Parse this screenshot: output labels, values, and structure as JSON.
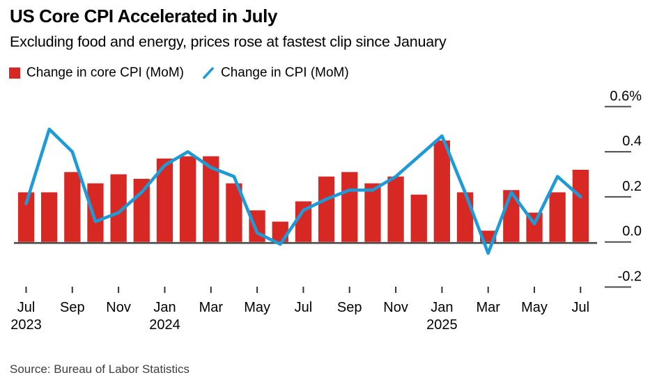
{
  "header": {
    "title": "US Core CPI Accelerated in July",
    "subtitle": "Excluding food and energy, prices rose at fastest clip since January"
  },
  "legend": {
    "core": {
      "label": "Change in core CPI (MoM)"
    },
    "cpi": {
      "label": "Change in CPI (MoM)"
    }
  },
  "source": "Source: Bureau of Labor Statistics",
  "colors": {
    "bar_red": "#d72823",
    "line_blue": "#1e9bd7",
    "axis_dark": "#4a4a4a",
    "tick_dark": "#333333",
    "text_black": "#000000",
    "source_gray": "#3d3d3d"
  },
  "chart_data": {
    "type": "bar+line",
    "title": "US Core CPI Accelerated in July",
    "subtitle": "Excluding food and energy, prices rose at fastest clip since January",
    "x": [
      "Jul 2023",
      "Aug 2023",
      "Sep 2023",
      "Oct 2023",
      "Nov 2023",
      "Dec 2023",
      "Jan 2024",
      "Feb 2024",
      "Mar 2024",
      "Apr 2024",
      "May 2024",
      "Jun 2024",
      "Jul 2024",
      "Aug 2024",
      "Sep 2024",
      "Oct 2024",
      "Nov 2024",
      "Dec 2024",
      "Jan 2025",
      "Feb 2025",
      "Mar 2025",
      "Apr 2025",
      "May 2025",
      "Jun 2025",
      "Jul 2025"
    ],
    "series": [
      {
        "name": "Change in core CPI (MoM)",
        "type": "bar",
        "color": "#d72823",
        "values": [
          0.22,
          0.22,
          0.31,
          0.26,
          0.3,
          0.28,
          0.37,
          0.38,
          0.38,
          0.26,
          0.14,
          0.09,
          0.18,
          0.29,
          0.31,
          0.26,
          0.29,
          0.21,
          0.45,
          0.22,
          0.05,
          0.23,
          0.13,
          0.22,
          0.32
        ]
      },
      {
        "name": "Change in CPI (MoM)",
        "type": "line",
        "color": "#1e9bd7",
        "values": [
          0.17,
          0.5,
          0.4,
          0.09,
          0.13,
          0.22,
          0.34,
          0.4,
          0.33,
          0.29,
          0.04,
          -0.01,
          0.14,
          0.19,
          0.23,
          0.23,
          0.29,
          0.38,
          0.47,
          0.22,
          -0.05,
          0.22,
          0.08,
          0.29,
          0.2
        ]
      }
    ],
    "xlabel": "",
    "ylabel": "",
    "y_unit": "%",
    "ylim": [
      -0.2,
      0.6
    ],
    "grid": false,
    "legend_position": "top",
    "yticks": [
      {
        "value": 0.6,
        "label": "0.6%"
      },
      {
        "value": 0.4,
        "label": "0.4"
      },
      {
        "value": 0.2,
        "label": "0.2"
      },
      {
        "value": 0.0,
        "label": "0.0"
      },
      {
        "value": -0.2,
        "label": "-0.2"
      }
    ],
    "xticks": [
      {
        "index": 0,
        "label": "Jul",
        "year": "2023"
      },
      {
        "index": 2,
        "label": "Sep"
      },
      {
        "index": 4,
        "label": "Nov"
      },
      {
        "index": 6,
        "label": "Jan",
        "year": "2024"
      },
      {
        "index": 8,
        "label": "Mar"
      },
      {
        "index": 10,
        "label": "May"
      },
      {
        "index": 12,
        "label": "Jul"
      },
      {
        "index": 14,
        "label": "Sep"
      },
      {
        "index": 16,
        "label": "Nov"
      },
      {
        "index": 18,
        "label": "Jan",
        "year": "2025"
      },
      {
        "index": 20,
        "label": "Mar"
      },
      {
        "index": 22,
        "label": "May"
      },
      {
        "index": 24,
        "label": "Jul"
      }
    ]
  }
}
